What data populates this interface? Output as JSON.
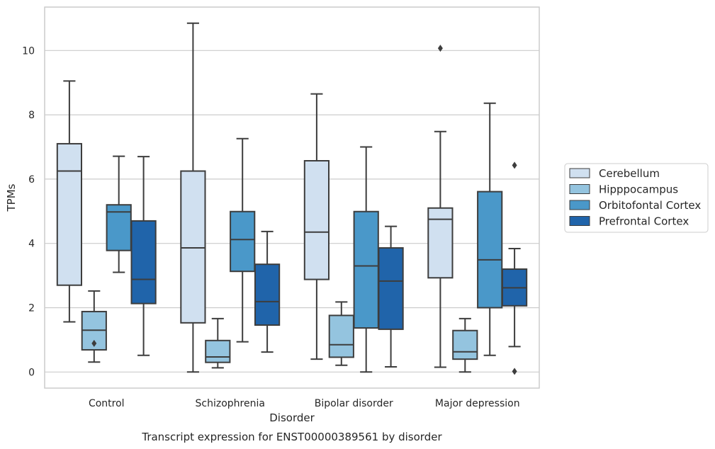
{
  "chart_data": {
    "type": "box",
    "title": "Transcript expression for ENST00000389561 by disorder",
    "xlabel": "Disorder",
    "ylabel": "TPMs",
    "ylim": [
      -0.5,
      11.35
    ],
    "yticks": [
      0,
      2,
      4,
      6,
      8,
      10
    ],
    "ytick_labels": [
      "0",
      "2",
      "4",
      "6",
      "8",
      "10"
    ],
    "grid": "horizontal",
    "legend_position": "right",
    "categories": [
      "Control",
      "Schizophrenia",
      "Bipolar disorder",
      "Major depression"
    ],
    "series": [
      {
        "name": "Cerebellum",
        "color": "#d0e0f0",
        "boxes": [
          {
            "whislo": 1.56,
            "q1": 2.7,
            "med": 6.25,
            "q3": 7.1,
            "whishi": 9.05,
            "fliers": []
          },
          {
            "whislo": 0.0,
            "q1": 1.53,
            "med": 3.86,
            "q3": 6.25,
            "whishi": 10.85,
            "fliers": []
          },
          {
            "whislo": 0.4,
            "q1": 2.88,
            "med": 4.35,
            "q3": 6.57,
            "whishi": 8.65,
            "fliers": []
          },
          {
            "whislo": 0.15,
            "q1": 2.93,
            "med": 4.75,
            "q3": 5.1,
            "whishi": 7.48,
            "fliers": [
              10.07
            ]
          }
        ]
      },
      {
        "name": "Hipppocampus",
        "color": "#94c4df",
        "boxes": [
          {
            "whislo": 0.31,
            "q1": 0.69,
            "med": 1.3,
            "q3": 1.88,
            "whishi": 2.52,
            "fliers": [
              0.89
            ]
          },
          {
            "whislo": 0.13,
            "q1": 0.3,
            "med": 0.47,
            "q3": 0.98,
            "whishi": 1.66,
            "fliers": []
          },
          {
            "whislo": 0.21,
            "q1": 0.46,
            "med": 0.85,
            "q3": 1.76,
            "whishi": 2.18,
            "fliers": []
          },
          {
            "whislo": 0.0,
            "q1": 0.4,
            "med": 0.63,
            "q3": 1.29,
            "whishi": 1.66,
            "fliers": []
          }
        ]
      },
      {
        "name": "Orbitofontal Cortex",
        "color": "#4a98c9",
        "boxes": [
          {
            "whislo": 3.1,
            "q1": 3.78,
            "med": 4.98,
            "q3": 5.2,
            "whishi": 6.71,
            "fliers": []
          },
          {
            "whislo": 0.94,
            "q1": 3.13,
            "med": 4.12,
            "q3": 4.99,
            "whishi": 7.26,
            "fliers": []
          },
          {
            "whislo": 0.0,
            "q1": 1.37,
            "med": 3.3,
            "q3": 4.99,
            "whishi": 7.0,
            "fliers": []
          },
          {
            "whislo": 0.52,
            "q1": 2.0,
            "med": 3.49,
            "q3": 5.61,
            "whishi": 8.36,
            "fliers": []
          }
        ]
      },
      {
        "name": "Prefrontal Cortex",
        "color": "#2064aa",
        "boxes": [
          {
            "whislo": 0.52,
            "q1": 2.13,
            "med": 2.88,
            "q3": 4.7,
            "whishi": 6.7,
            "fliers": []
          },
          {
            "whislo": 0.62,
            "q1": 1.46,
            "med": 2.19,
            "q3": 3.35,
            "whishi": 4.37,
            "fliers": []
          },
          {
            "whislo": 0.16,
            "q1": 1.33,
            "med": 2.83,
            "q3": 3.86,
            "whishi": 4.53,
            "fliers": []
          },
          {
            "whislo": 0.79,
            "q1": 2.06,
            "med": 2.62,
            "q3": 3.2,
            "whishi": 3.84,
            "fliers": [
              6.43,
              0.02
            ]
          }
        ]
      }
    ]
  }
}
